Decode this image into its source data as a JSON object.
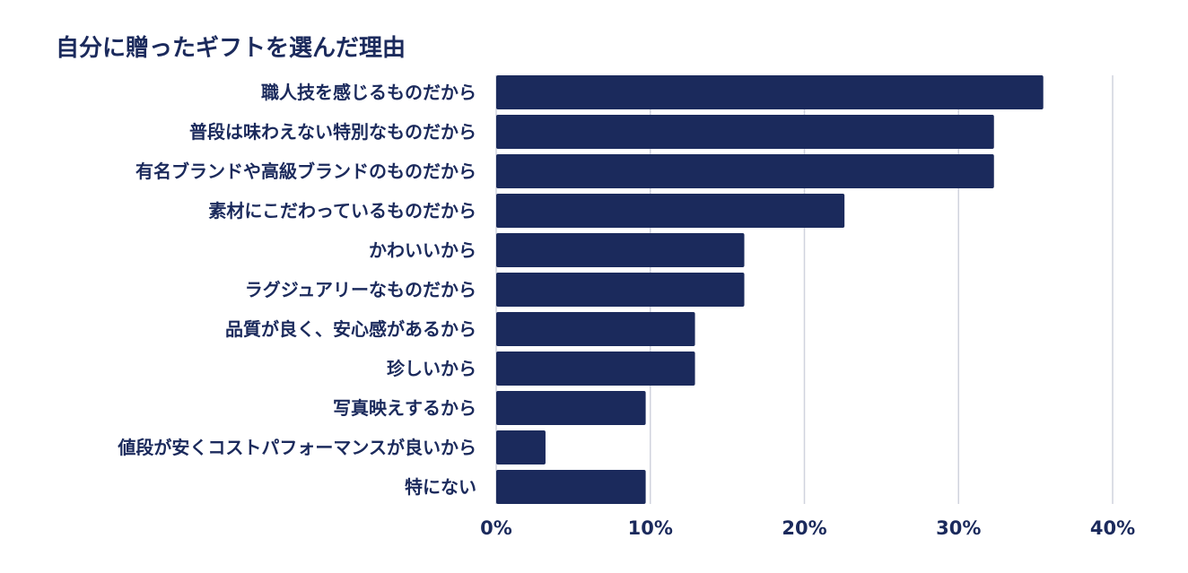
{
  "chart_data": {
    "type": "bar",
    "orientation": "horizontal",
    "title": "自分に贈ったギフトを選んだ理由",
    "categories": [
      "職人技を感じるものだから",
      "普段は味わえない特別なものだから",
      "有名ブランドや高級ブランドのものだから",
      "素材にこだわっているものだから",
      "かわいいから",
      "ラグジュアリーなものだから",
      "品質が良く、安心感があるから",
      "珍しいから",
      "写真映えするから",
      "値段が安くコストパフォーマンスが良いから",
      "特にない"
    ],
    "values": [
      35.5,
      32.3,
      32.3,
      22.6,
      16.1,
      16.1,
      12.9,
      12.9,
      9.7,
      3.2,
      9.7
    ],
    "xlim": [
      0,
      40
    ],
    "xticks": [
      0,
      10,
      20,
      30,
      40
    ],
    "xtick_labels": [
      "0%",
      "10%",
      "20%",
      "30%",
      "40%"
    ],
    "grid": "vertical",
    "bar_color": "#1b2a5c",
    "grid_color": "#d0d3de",
    "text_color": "#1b2a5c"
  }
}
